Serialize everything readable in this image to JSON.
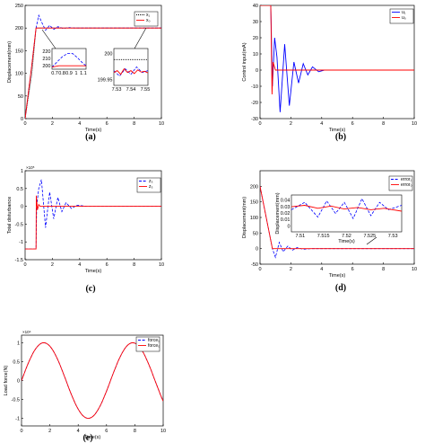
{
  "chart_data": [
    {
      "id": "a",
      "type": "line",
      "panel_label": "(a)",
      "xlabel": "Time(s)",
      "ylabel": "Displacement(mm)",
      "xlim": [
        0,
        10
      ],
      "ylim": [
        0,
        250
      ],
      "xticks": [
        0,
        2,
        4,
        6,
        8,
        10
      ],
      "yticks": [
        0,
        50,
        100,
        150,
        200,
        250
      ],
      "legend": [
        "x₁",
        "x₀"
      ],
      "colors": [
        "#000000",
        "#0000ff",
        "#ff0000"
      ],
      "series": [
        {
          "name": "x₁",
          "style": "dotted",
          "color": "#000000",
          "x": [
            0,
            0.5,
            0.8,
            10
          ],
          "y": [
            0,
            100,
            200,
            200
          ]
        },
        {
          "name": "",
          "style": "dashed",
          "color": "#0000ff",
          "x": [
            0,
            0.5,
            0.8,
            1.0,
            1.2,
            1.5,
            1.8,
            2.1,
            2.4,
            2.8,
            3.2,
            3.6,
            4.0,
            10
          ],
          "y": [
            0,
            120,
            200,
            228,
            214,
            195,
            206,
            197,
            203,
            199,
            201,
            200,
            200,
            200
          ]
        },
        {
          "name": "x₀",
          "style": "solid",
          "color": "#ff0000",
          "x": [
            0,
            0.5,
            0.8,
            10
          ],
          "y": [
            0,
            120,
            200,
            200
          ]
        }
      ],
      "insets": [
        {
          "xticks_labels": [
            "0.7",
            "0.8",
            "0.9",
            "1",
            "1.1"
          ],
          "yticks_labels": [
            "200",
            "210",
            "220"
          ],
          "xlim": [
            0.65,
            1.15
          ],
          "ylim": [
            195,
            225
          ],
          "series": [
            {
              "style": "dashed",
              "color": "#0000ff",
              "x": [
                0.65,
                0.72,
                0.8,
                0.88,
                0.95,
                1.02,
                1.1,
                1.15
              ],
              "y": [
                198,
                205,
                213,
                218,
                218,
                212,
                204,
                200
              ]
            },
            {
              "style": "solid",
              "color": "#ff0000",
              "x": [
                0.65,
                0.75,
                0.85,
                1.0,
                1.15
              ],
              "y": [
                198,
                200,
                200,
                200,
                200
              ]
            }
          ]
        },
        {
          "xticks_labels": [
            "7.53",
            "7.54",
            "7.55"
          ],
          "yticks_labels": [
            "199.95",
            "200"
          ],
          "xlim": [
            7.525,
            7.555
          ],
          "ylim": [
            199.93,
            200.03
          ],
          "series": [
            {
              "style": "dotted",
              "color": "#000000",
              "x": [
                7.525,
                7.555
              ],
              "y": [
                200,
                200
              ]
            },
            {
              "style": "dashed",
              "color": "#0000ff",
              "x": [
                7.525,
                7.53,
                7.535,
                7.54,
                7.545,
                7.55,
                7.555
              ],
              "y": [
                199.97,
                199.955,
                199.975,
                199.96,
                199.98,
                199.965,
                199.97
              ]
            },
            {
              "style": "solid",
              "color": "#ff0000",
              "x": [
                7.525,
                7.528,
                7.531,
                7.534,
                7.537,
                7.54,
                7.543,
                7.546,
                7.549,
                7.552,
                7.555
              ],
              "y": [
                199.965,
                199.97,
                199.96,
                199.975,
                199.965,
                199.97,
                199.962,
                199.972,
                199.966,
                199.968,
                199.964
              ]
            }
          ]
        }
      ]
    },
    {
      "id": "b",
      "type": "line",
      "panel_label": "(b)",
      "xlabel": "Time(s)",
      "ylabel": "Control input(mA)",
      "xlim": [
        0,
        10
      ],
      "ylim": [
        -30,
        40
      ],
      "xticks": [
        0,
        2,
        4,
        6,
        8,
        10
      ],
      "yticks": [
        -30,
        -20,
        -10,
        0,
        10,
        20,
        30,
        40
      ],
      "legend": [
        "u₁",
        "u₀"
      ],
      "colors": [
        "#0000ff",
        "#ff0000"
      ],
      "series": [
        {
          "name": "u₁",
          "style": "solid",
          "color": "#0000ff",
          "x": [
            0,
            0.7,
            0.8,
            0.95,
            1.1,
            1.3,
            1.6,
            1.9,
            2.2,
            2.5,
            2.8,
            3.1,
            3.4,
            3.8,
            4.2,
            10
          ],
          "y": [
            40,
            40,
            -10,
            20,
            8,
            -26,
            16,
            -22,
            5,
            -8,
            4,
            -3,
            2,
            -1,
            0,
            0
          ]
        },
        {
          "name": "u₀",
          "style": "solid",
          "color": "#ff0000",
          "x": [
            0,
            0.7,
            0.78,
            0.85,
            1.0,
            10
          ],
          "y": [
            40,
            40,
            -15,
            5,
            0,
            0
          ]
        }
      ]
    },
    {
      "id": "c",
      "type": "line",
      "panel_label": "(c)",
      "xlabel": "Time(s)",
      "ylabel": "Total disturbance",
      "xlim": [
        0,
        10
      ],
      "ylim": [
        -1.5,
        1
      ],
      "exponent": "×10⁵",
      "xticks": [
        0,
        2,
        4,
        6,
        8,
        10
      ],
      "yticks": [
        -1.5,
        -1,
        -0.5,
        0,
        0.5,
        1
      ],
      "legend": [
        "z₃",
        "z₃"
      ],
      "colors": [
        "#0000ff",
        "#ff0000"
      ],
      "series": [
        {
          "name": "z₃",
          "style": "dashed",
          "color": "#0000ff",
          "x": [
            0,
            0.8,
            0.85,
            1.0,
            1.2,
            1.5,
            1.8,
            2.1,
            2.4,
            2.7,
            3.0,
            3.4,
            3.8,
            4.5,
            10
          ],
          "y": [
            -1.2,
            -1.2,
            0,
            0.5,
            0.75,
            -0.6,
            0.4,
            -0.35,
            0.25,
            -0.15,
            0.1,
            -0.06,
            0.03,
            0,
            0
          ]
        },
        {
          "name": "z₃",
          "style": "solid",
          "color": "#ff0000",
          "x": [
            0,
            0.8,
            0.82,
            0.9,
            1.0,
            1.1,
            10
          ],
          "y": [
            -1.2,
            -1.2,
            0.3,
            -0.1,
            0.05,
            0,
            0
          ]
        }
      ]
    },
    {
      "id": "d",
      "type": "line",
      "panel_label": "(d)",
      "xlabel": "Time(s)",
      "ylabel": "Displacement(mm)",
      "xlim": [
        0,
        10
      ],
      "ylim": [
        -50,
        250
      ],
      "xticks": [
        0,
        2,
        4,
        6,
        8,
        10
      ],
      "yticks": [
        -50,
        0,
        50,
        100,
        150,
        200
      ],
      "legend": [
        "error₁",
        "error₀"
      ],
      "colors": [
        "#0000ff",
        "#ff0000"
      ],
      "series": [
        {
          "name": "error₁",
          "style": "dashed",
          "color": "#0000ff",
          "x": [
            0,
            0.8,
            1.0,
            1.25,
            1.5,
            1.8,
            2.1,
            2.4,
            2.8,
            3.3,
            10
          ],
          "y": [
            200,
            0,
            -28,
            20,
            -10,
            8,
            -5,
            3,
            -2,
            0,
            0
          ]
        },
        {
          "name": "error₀",
          "style": "solid",
          "color": "#ff0000",
          "x": [
            0,
            0.8,
            10
          ],
          "y": [
            200,
            0,
            0
          ]
        }
      ],
      "insets": [
        {
          "xticks_labels": [
            "7.51",
            "7.515",
            "7.52",
            "7.525",
            "7.53"
          ],
          "yticks_labels": [
            "0",
            "0.01",
            "0.02",
            "0.03",
            "0.04"
          ],
          "xlim": [
            7.508,
            7.533
          ],
          "ylim": [
            0,
            0.05
          ],
          "xlabel": "Time(s)",
          "ylabel": "Displacement(mm)",
          "series": [
            {
              "style": "dashed",
              "color": "#0000ff",
              "x": [
                7.508,
                7.511,
                7.514,
                7.516,
                7.518,
                7.52,
                7.522,
                7.524,
                7.526,
                7.528,
                7.53,
                7.533
              ],
              "y": [
                0.03,
                0.04,
                0.02,
                0.042,
                0.025,
                0.04,
                0.018,
                0.045,
                0.022,
                0.04,
                0.03,
                0.036
              ]
            },
            {
              "style": "solid",
              "color": "#ff0000",
              "x": [
                7.508,
                7.511,
                7.514,
                7.517,
                7.52,
                7.523,
                7.526,
                7.529,
                7.533
              ],
              "y": [
                0.034,
                0.036,
                0.032,
                0.035,
                0.031,
                0.033,
                0.03,
                0.032,
                0.028
              ]
            }
          ]
        }
      ]
    },
    {
      "id": "e",
      "type": "line",
      "panel_label": "(e)",
      "xlabel": "Time(s)",
      "ylabel": "Load force(N)",
      "xlim": [
        0,
        10
      ],
      "ylim": [
        -1.2,
        1.2
      ],
      "exponent": "×10⁴",
      "xticks": [
        0,
        2,
        4,
        6,
        8,
        10
      ],
      "yticks": [
        -1,
        -0.5,
        0,
        0.5,
        1
      ],
      "legend": [
        "force₁",
        "force₀"
      ],
      "colors": [
        "#0000ff",
        "#ff0000"
      ],
      "series": [
        {
          "name": "force₁",
          "style": "dashed",
          "color": "#0000ff",
          "function": "sin",
          "amplitude": 1,
          "period": 6.2832,
          "x": [
            0,
            10
          ]
        },
        {
          "name": "force₀",
          "style": "solid",
          "color": "#ff0000",
          "function": "sin",
          "amplitude": 1,
          "period": 6.2832,
          "x": [
            0,
            10
          ]
        }
      ]
    }
  ]
}
